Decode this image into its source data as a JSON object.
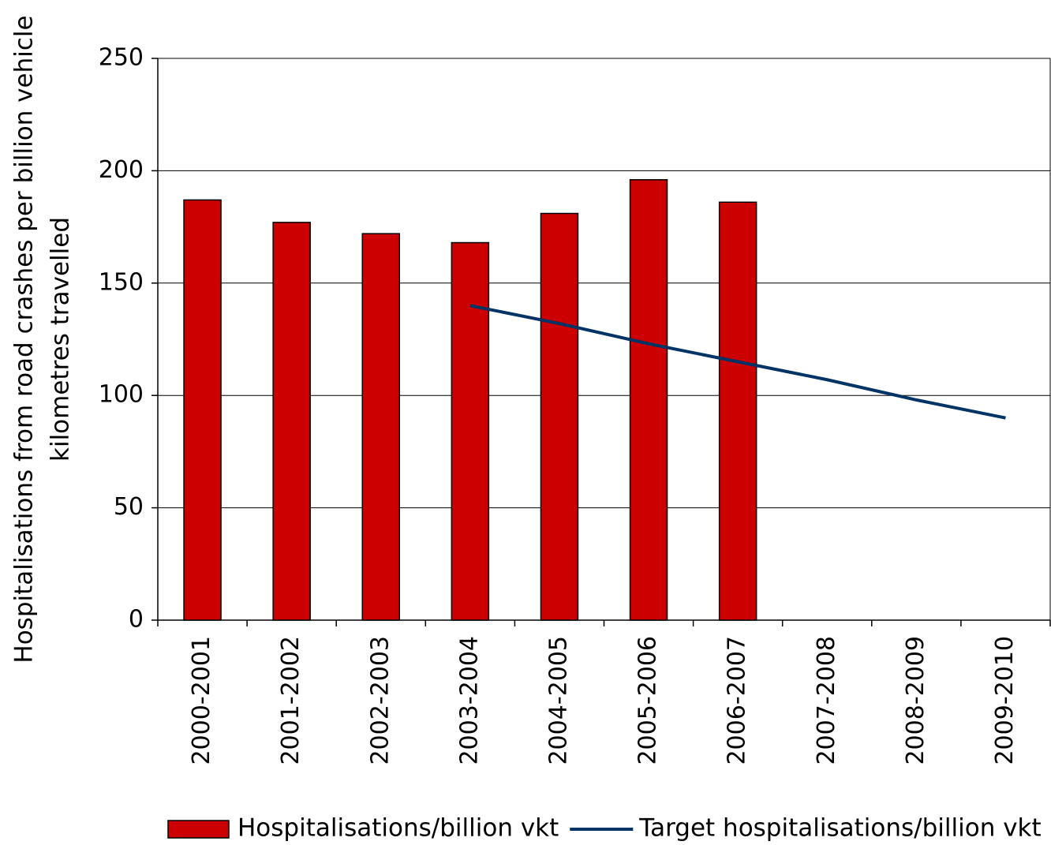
{
  "chart_data": {
    "type": "bar",
    "y_axis_label": [
      "Hospitalisations from road crashes per billion vehicle",
      "kilometres travelled"
    ],
    "categories": [
      "2000-2001",
      "2001-2002",
      "2002-2003",
      "2003-2004",
      "2004-2005",
      "2005-2006",
      "2006-2007",
      "2007-2008",
      "2008-2009",
      "2009-2010"
    ],
    "series": [
      {
        "name": "Hospitalisations/billion vkt",
        "type": "bar",
        "color": "#cc0000",
        "values": [
          187,
          177,
          172,
          168,
          181,
          196,
          186,
          null,
          null,
          null
        ]
      },
      {
        "name": "Target hospitalisations/billion vkt",
        "type": "line",
        "color": "#003366",
        "values": [
          null,
          null,
          null,
          140,
          132,
          123,
          115,
          107,
          98,
          90
        ]
      }
    ],
    "ylim": [
      0,
      250
    ],
    "yticks": [
      0,
      50,
      100,
      150,
      200,
      250
    ],
    "grid": true,
    "legend": "bottom"
  }
}
